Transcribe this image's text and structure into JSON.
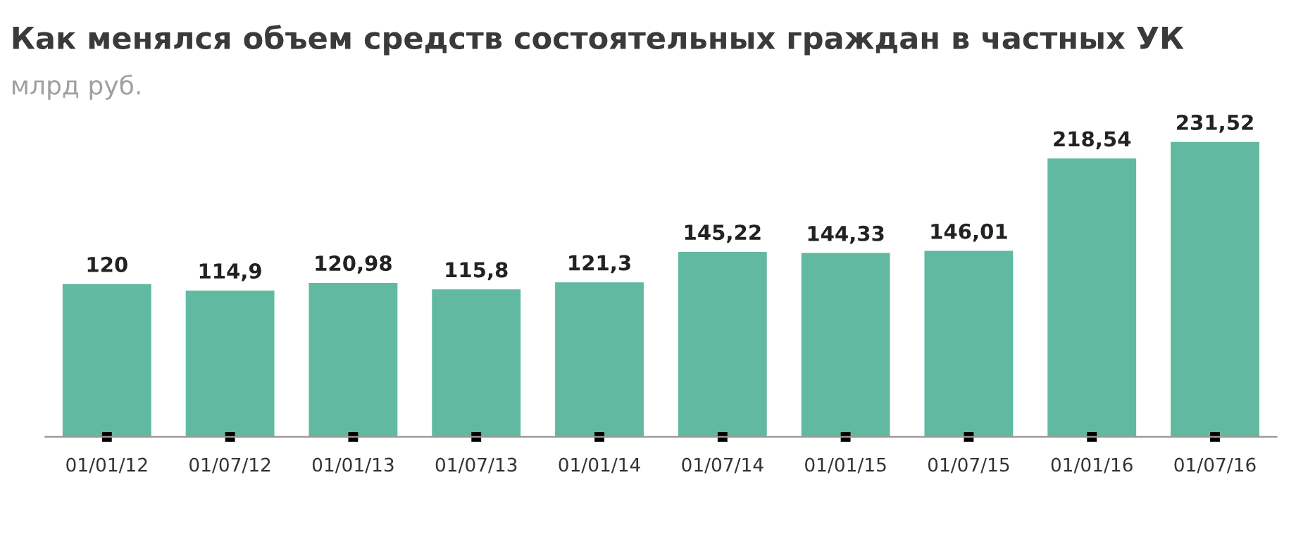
{
  "chart_data": {
    "type": "bar",
    "title": "Как менялся объем средств состоятельных граждан в частных УК",
    "subtitle": "млрд руб.",
    "categories": [
      "01/01/12",
      "01/07/12",
      "01/01/13",
      "01/07/13",
      "01/01/14",
      "01/07/14",
      "01/01/15",
      "01/07/15",
      "01/01/16",
      "01/07/16"
    ],
    "values": [
      120,
      114.9,
      120.98,
      115.8,
      121.3,
      145.22,
      144.33,
      146.01,
      218.54,
      231.52
    ],
    "value_labels": [
      "120",
      "114,9",
      "120,98",
      "115,8",
      "121,3",
      "145,22",
      "144,33",
      "146,01",
      "218,54",
      "231,52"
    ],
    "color": "#62b9a2",
    "tick_labels": "x",
    "grid": false,
    "legend": false
  }
}
